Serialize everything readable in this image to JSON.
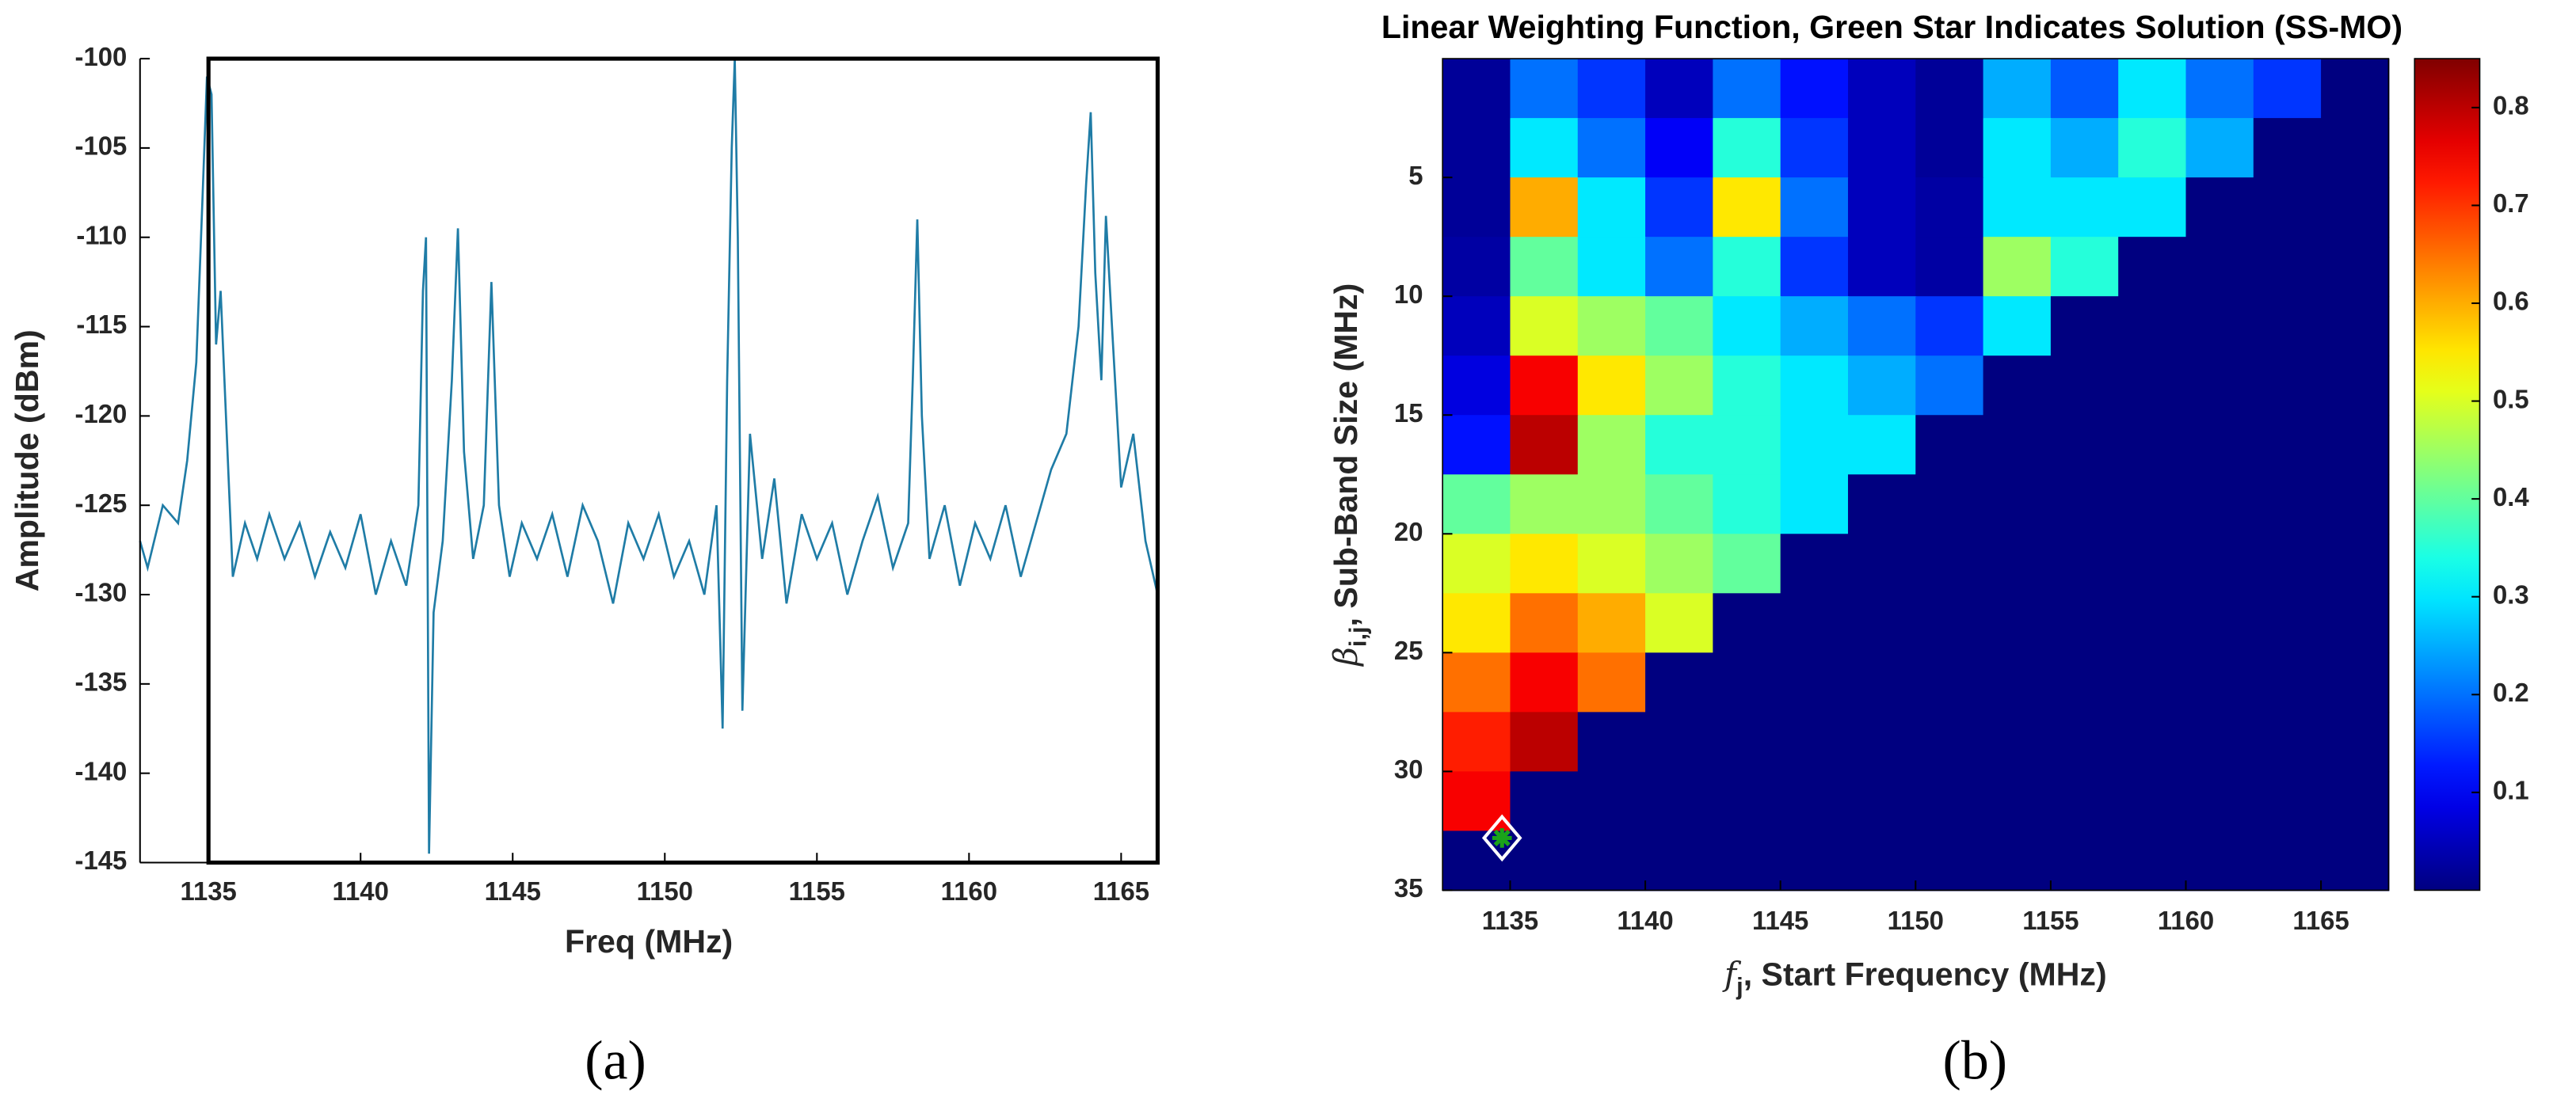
{
  "chart_data": [
    {
      "type": "line",
      "xlabel": "Freq (MHz)",
      "ylabel": "Amplitude (dBm)",
      "panel_label": "(a)",
      "xlim": [
        1132.75,
        1166.2
      ],
      "ylim": [
        -145,
        -100
      ],
      "xticks": [
        1135,
        1140,
        1145,
        1150,
        1155,
        1160,
        1165
      ],
      "yticks": [
        -145,
        -140,
        -135,
        -130,
        -125,
        -120,
        -115,
        -110,
        -105,
        -100
      ],
      "highlight_x": [
        1135,
        1166.2
      ],
      "x": [
        1132.75,
        1133,
        1133.5,
        1134,
        1134.3,
        1134.6,
        1134.8,
        1134.95,
        1135.1,
        1135.25,
        1135.4,
        1135.6,
        1135.8,
        1136.2,
        1136.6,
        1137,
        1137.5,
        1138,
        1138.5,
        1139,
        1139.5,
        1140,
        1140.5,
        1141,
        1141.5,
        1141.9,
        1142.05,
        1142.15,
        1142.25,
        1142.4,
        1142.7,
        1143,
        1143.2,
        1143.4,
        1143.7,
        1144.05,
        1144.3,
        1144.55,
        1144.9,
        1145.3,
        1145.8,
        1146.3,
        1146.8,
        1147.3,
        1147.8,
        1148.3,
        1148.8,
        1149.3,
        1149.8,
        1150.3,
        1150.8,
        1151.3,
        1151.7,
        1151.9,
        1152.05,
        1152.2,
        1152.3,
        1152.4,
        1152.55,
        1152.8,
        1153.2,
        1153.6,
        1154,
        1154.5,
        1155,
        1155.5,
        1156,
        1156.5,
        1157,
        1157.5,
        1158,
        1158.15,
        1158.3,
        1158.45,
        1158.7,
        1159.2,
        1159.7,
        1160.2,
        1160.7,
        1161.2,
        1161.7,
        1162.2,
        1162.7,
        1163.2,
        1163.6,
        1163.85,
        1164,
        1164.15,
        1164.35,
        1164.5,
        1164.7,
        1165,
        1165.4,
        1165.8,
        1166.2
      ],
      "color": "#1f7ca6",
      "values": [
        -127,
        -128.5,
        -125,
        -126,
        -122.5,
        -117,
        -108,
        -101,
        -102,
        -116,
        -113,
        -121,
        -129,
        -126,
        -128,
        -125.5,
        -128,
        -126,
        -129,
        -126.5,
        -128.5,
        -125.5,
        -130,
        -127,
        -129.5,
        -125,
        -113,
        -110,
        -144.5,
        -131,
        -127,
        -118,
        -109.5,
        -122,
        -128,
        -125,
        -112.5,
        -125,
        -129,
        -126,
        -128,
        -125.5,
        -129,
        -125,
        -127,
        -130.5,
        -126,
        -128,
        -125.5,
        -129,
        -127,
        -130,
        -125,
        -137.5,
        -118,
        -105,
        -100,
        -110,
        -136.5,
        -121,
        -128,
        -123.5,
        -130.5,
        -125.5,
        -128,
        -126,
        -130,
        -127,
        -124.5,
        -128.5,
        -126,
        -118,
        -109,
        -120,
        -128,
        -125,
        -129.5,
        -126,
        -128,
        -125,
        -129,
        -126,
        -123,
        -121,
        -115,
        -107,
        -103,
        -112,
        -118,
        -108.8,
        -115,
        -124,
        -121,
        -127,
        -130
      ]
    },
    {
      "type": "heatmap",
      "title": "Linear Weighting Function, Green Star Indicates Solution (SS-MO)",
      "xlabel": {
        "symbol": "f",
        "subscript": "j",
        "text": ", Start Frequency (MHz)"
      },
      "ylabel": {
        "symbol": "β",
        "subscript": "i,j",
        "text": ", Sub-Band Size (MHz)"
      },
      "panel_label": "(b)",
      "xlim": [
        1132.5,
        1167.5
      ],
      "ylim": [
        0,
        35
      ],
      "y_reversed": true,
      "xticks": [
        1135,
        1140,
        1145,
        1150,
        1155,
        1160,
        1165
      ],
      "yticks": [
        5,
        10,
        15,
        20,
        25,
        30,
        35
      ],
      "colormap": "jet",
      "clim": [
        0,
        0.85
      ],
      "cticks": [
        0.1,
        0.2,
        0.3,
        0.4,
        0.5,
        0.6,
        0.7,
        0.8
      ],
      "x": [
        1133.75,
        1136.25,
        1138.75,
        1141.25,
        1143.75,
        1146.25,
        1148.75,
        1151.25,
        1153.75,
        1156.25,
        1158.75,
        1161.25,
        1163.75,
        1166.25
      ],
      "y": [
        1.25,
        3.75,
        6.25,
        8.75,
        11.25,
        13.75,
        16.25,
        18.75,
        21.25,
        23.75,
        26.25,
        28.75,
        31.25,
        33.75
      ],
      "z": [
        [
          0.02,
          0.2,
          0.15,
          0.05,
          0.2,
          0.12,
          0.05,
          0.02,
          0.25,
          0.18,
          0.3,
          0.2,
          0.15,
          0
        ],
        [
          0.02,
          0.3,
          0.2,
          0.1,
          0.35,
          0.15,
          0.05,
          0.02,
          0.3,
          0.25,
          0.35,
          0.25,
          0,
          0
        ],
        [
          0.02,
          0.6,
          0.3,
          0.15,
          0.55,
          0.2,
          0.05,
          0.03,
          0.3,
          0.3,
          0.3,
          0,
          0,
          0
        ],
        [
          0.03,
          0.4,
          0.3,
          0.2,
          0.35,
          0.15,
          0.05,
          0.03,
          0.45,
          0.35,
          0,
          0,
          0,
          0
        ],
        [
          0.05,
          0.5,
          0.45,
          0.4,
          0.3,
          0.25,
          0.2,
          0.15,
          0.3,
          0,
          0,
          0,
          0,
          0
        ],
        [
          0.08,
          0.75,
          0.55,
          0.45,
          0.35,
          0.3,
          0.25,
          0.2,
          0,
          0,
          0,
          0,
          0,
          0
        ],
        [
          0.12,
          0.8,
          0.45,
          0.35,
          0.35,
          0.3,
          0.3,
          0,
          0,
          0,
          0,
          0,
          0,
          0
        ],
        [
          0.4,
          0.45,
          0.45,
          0.4,
          0.35,
          0.3,
          0,
          0,
          0,
          0,
          0,
          0,
          0,
          0
        ],
        [
          0.5,
          0.55,
          0.5,
          0.45,
          0.4,
          0,
          0,
          0,
          0,
          0,
          0,
          0,
          0,
          0
        ],
        [
          0.55,
          0.65,
          0.6,
          0.5,
          0,
          0,
          0,
          0,
          0,
          0,
          0,
          0,
          0,
          0
        ],
        [
          0.65,
          0.75,
          0.65,
          0,
          0,
          0,
          0,
          0,
          0,
          0,
          0,
          0,
          0,
          0
        ],
        [
          0.72,
          0.8,
          0,
          0,
          0,
          0,
          0,
          0,
          0,
          0,
          0,
          0,
          0,
          0
        ],
        [
          0.75,
          0,
          0,
          0,
          0,
          0,
          0,
          0,
          0,
          0,
          0,
          0,
          0,
          0
        ],
        [
          0,
          0,
          0,
          0,
          0,
          0,
          0,
          0,
          0,
          0,
          0,
          0,
          0,
          0
        ]
      ],
      "solution": {
        "x": 1134.7,
        "y": 32.8,
        "color": "#1aa31a"
      }
    }
  ]
}
